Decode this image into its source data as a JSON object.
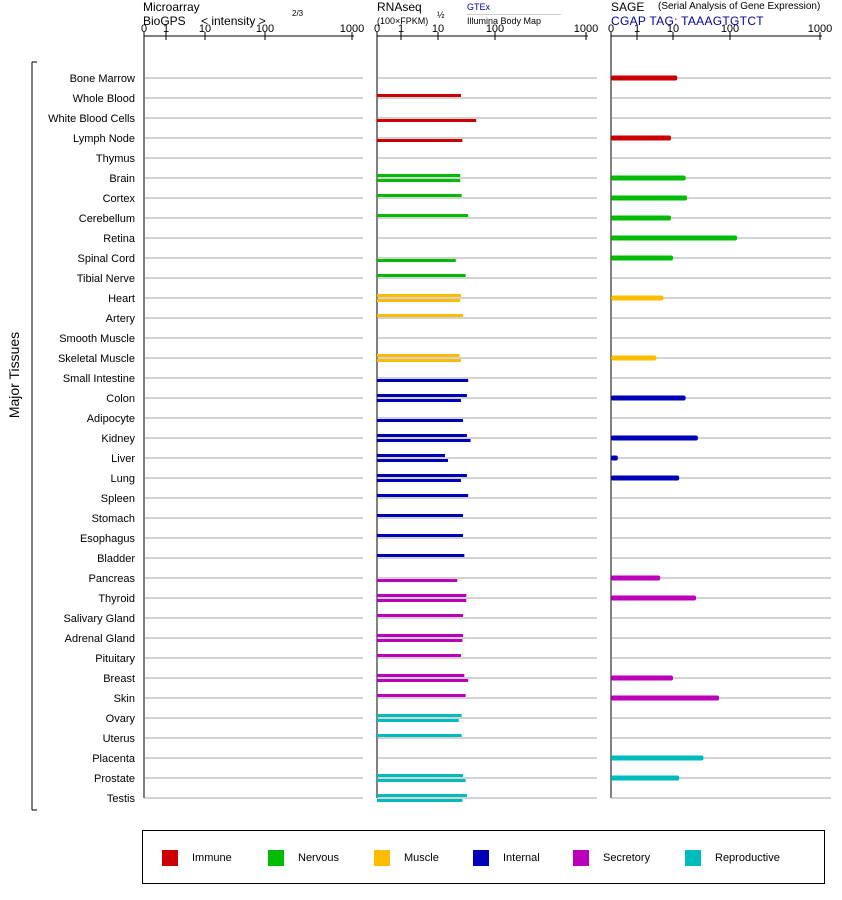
{
  "chart_data": {
    "type": "bar",
    "ylabel": "Major Tissues",
    "panels": [
      {
        "title_lines": [
          "Microarray",
          "BioGPS"
        ],
        "scale_label": "< intensity >",
        "scale_exponent": "2/3",
        "axis_ticks": [
          "0",
          "1",
          "10",
          "100",
          "1000"
        ]
      },
      {
        "title_lines": [
          "RNAseq",
          "(100×FPKM)"
        ],
        "scale_exponent": "½",
        "sources": [
          "GTEx",
          "Illumina Body Map"
        ],
        "axis_ticks": [
          "0",
          "1",
          "10",
          "100",
          "1000"
        ]
      },
      {
        "title_lines": [
          "SAGE"
        ],
        "subtitle": "(Serial Analysis of Gene Expression)",
        "tag": "CGAP  TAG: TAAAGTGTCT",
        "axis_ticks": [
          "0",
          "1",
          "10",
          "100",
          "1000"
        ]
      }
    ],
    "categories": [
      "Bone Marrow",
      "Whole Blood",
      "White Blood Cells",
      "Lymph Node",
      "Thymus",
      "Brain",
      "Cortex",
      "Cerebellum",
      "Retina",
      "Spinal Cord",
      "Tibial Nerve",
      "Heart",
      "Artery",
      "Smooth Muscle",
      "Skeletal Muscle",
      "Small Intestine",
      "Colon",
      "Adipocyte",
      "Kidney",
      "Liver",
      "Lung",
      "Spleen",
      "Stomach",
      "Esophagus",
      "Bladder",
      "Pancreas",
      "Thyroid",
      "Salivary Gland",
      "Adrenal Gland",
      "Pituitary",
      "Breast",
      "Skin",
      "Ovary",
      "Uterus",
      "Placenta",
      "Prostate",
      "Testis"
    ],
    "groups": [
      "Immune",
      "Immune",
      "Immune",
      "Immune",
      "Immune",
      "Nervous",
      "Nervous",
      "Nervous",
      "Nervous",
      "Nervous",
      "Nervous",
      "Muscle",
      "Muscle",
      "Muscle",
      "Muscle",
      "Internal",
      "Internal",
      "Internal",
      "Internal",
      "Internal",
      "Internal",
      "Internal",
      "Internal",
      "Internal",
      "Internal",
      "Secretory",
      "Secretory",
      "Secretory",
      "Secretory",
      "Secretory",
      "Secretory",
      "Secretory",
      "Reproductive",
      "Reproductive",
      "Reproductive",
      "Reproductive",
      "Reproductive"
    ],
    "rnaseq_gtex": [
      null,
      35,
      null,
      null,
      null,
      34,
      36,
      46,
      null,
      null,
      42,
      35,
      38,
      null,
      33,
      null,
      44,
      null,
      44,
      16,
      44,
      46,
      38,
      38,
      40,
      null,
      43,
      38,
      38,
      35,
      40,
      42,
      36,
      36,
      null,
      38,
      44
    ],
    "rnaseq_ibm": [
      null,
      null,
      60,
      37,
      null,
      34,
      null,
      null,
      null,
      28,
      null,
      34,
      null,
      null,
      35,
      46,
      35,
      38,
      50,
      19,
      35,
      null,
      null,
      null,
      null,
      30,
      43,
      null,
      37,
      null,
      46,
      null,
      32,
      null,
      null,
      42,
      37
    ],
    "sage": [
      12,
      null,
      null,
      9,
      null,
      17,
      18,
      9,
      120,
      10,
      null,
      6,
      null,
      null,
      4,
      null,
      17,
      null,
      28,
      0.2,
      13,
      null,
      null,
      null,
      null,
      5,
      26,
      null,
      null,
      null,
      10,
      65,
      null,
      null,
      35,
      13,
      null
    ],
    "xlim": [
      0,
      1000
    ],
    "x_transform": "power 2/3 (microarray), square root (RNAseq), log-like (SAGE)",
    "legend": [
      {
        "label": "Immune",
        "color": "#cc0000"
      },
      {
        "label": "Nervous",
        "color": "#00bb00"
      },
      {
        "label": "Muscle",
        "color": "#ffbb00"
      },
      {
        "label": "Internal",
        "color": "#0000bb"
      },
      {
        "label": "Secretory",
        "color": "#bb00bb"
      },
      {
        "label": "Reproductive",
        "color": "#00bbbb"
      }
    ],
    "legend_placement": "bottom",
    "grid": true
  }
}
